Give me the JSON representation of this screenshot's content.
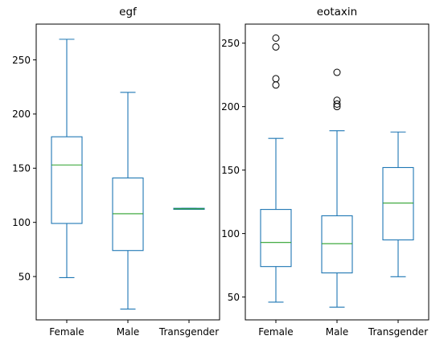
{
  "chart_data": [
    {
      "type": "box",
      "title": "egf",
      "categories": [
        "Female",
        "Male",
        "Transgender"
      ],
      "ylim": [
        10,
        283
      ],
      "yticks": [
        50,
        100,
        150,
        200,
        250
      ],
      "grid": false,
      "boxes": [
        {
          "category": "Female",
          "whislo": 49,
          "q1": 99,
          "median": 153,
          "q3": 179,
          "whishi": 269,
          "fliers": []
        },
        {
          "category": "Male",
          "whislo": 20,
          "q1": 74,
          "median": 108,
          "q3": 141,
          "whishi": 220,
          "fliers": []
        },
        {
          "category": "Transgender",
          "whislo": 112,
          "q1": 112,
          "median": 112.5,
          "q3": 113,
          "whishi": 113,
          "fliers": []
        }
      ]
    },
    {
      "type": "box",
      "title": "eotaxin",
      "categories": [
        "Female",
        "Male",
        "Transgender"
      ],
      "ylim": [
        32,
        265
      ],
      "yticks": [
        50,
        100,
        150,
        200,
        250
      ],
      "grid": false,
      "boxes": [
        {
          "category": "Female",
          "whislo": 46,
          "q1": 74,
          "median": 93,
          "q3": 119,
          "whishi": 175,
          "fliers": [
            217,
            222,
            247,
            254
          ]
        },
        {
          "category": "Male",
          "whislo": 42,
          "q1": 69,
          "median": 92,
          "q3": 114,
          "whishi": 181,
          "fliers": [
            200,
            202,
            205,
            227
          ]
        },
        {
          "category": "Transgender",
          "whislo": 66,
          "q1": 95,
          "median": 124,
          "q3": 152,
          "whishi": 180,
          "fliers": []
        }
      ]
    }
  ],
  "colors": {
    "box": "#1f77b4",
    "median": "#2ca02c",
    "flier": "#000000",
    "axes": "#000000"
  }
}
